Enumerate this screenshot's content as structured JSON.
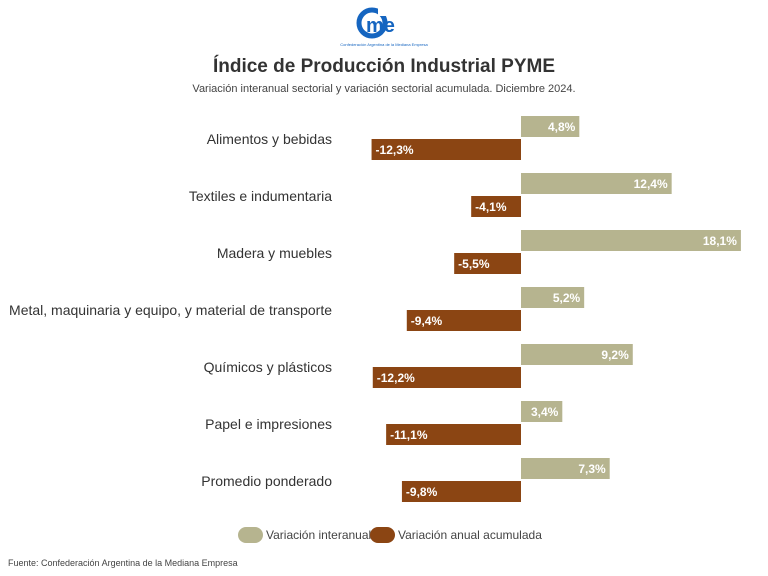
{
  "logo": {
    "text": "came",
    "tagline": "Confederación Argentina de la Mediana Empresa"
  },
  "chart_data": {
    "type": "bar",
    "orientation": "horizontal",
    "title": "Índice de Producción Industrial PYME",
    "subtitle": "Variación interanual sectorial y variación sectorial acumulada. Diciembre 2024.",
    "categories": [
      "Alimentos y bebidas",
      "Textiles e indumentaria",
      "Madera y muebles",
      "Metal, maquinaria y equipo, y material de transporte",
      "Químicos y plásticos",
      "Papel e impresiones",
      "Promedio ponderado"
    ],
    "series": [
      {
        "name": "Variación interanual",
        "color": "#b6b48f",
        "values": [
          4.8,
          12.4,
          18.1,
          5.2,
          9.2,
          3.4,
          7.3
        ],
        "labels": [
          "4,8%",
          "12,4%",
          "18,1%",
          "5,2%",
          "9,2%",
          "3,4%",
          "7,3%"
        ]
      },
      {
        "name": "Variación anual acumulada",
        "color": "#8b4513",
        "values": [
          -12.3,
          -4.1,
          -5.5,
          -9.4,
          -12.2,
          -11.1,
          -9.8
        ],
        "labels": [
          "-12,3%",
          "-4,1%",
          "-5,5%",
          "-9,4%",
          "-12,2%",
          "-11,1%",
          "-9,8%"
        ]
      }
    ],
    "grid": false,
    "legend_position": "bottom",
    "source": "Fuente: Confederación Argentina de la Mediana Empresa"
  }
}
